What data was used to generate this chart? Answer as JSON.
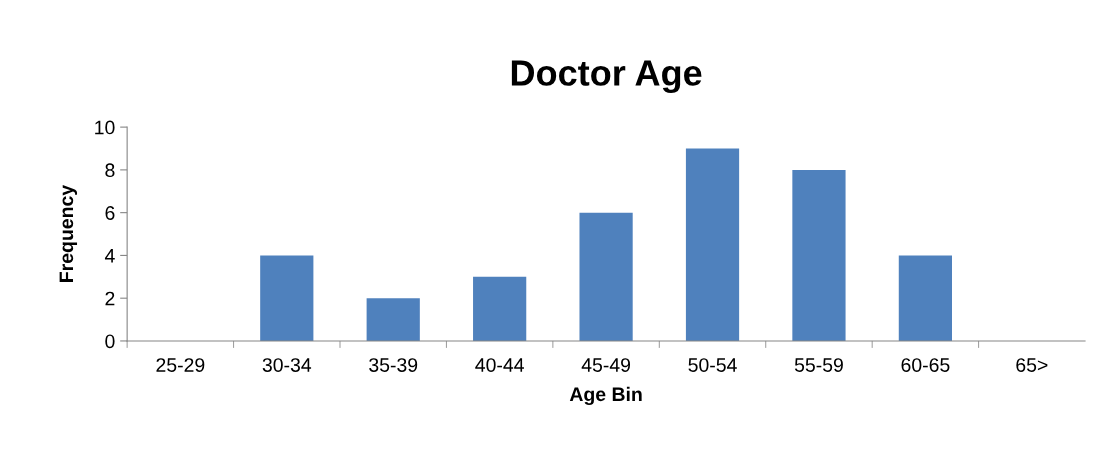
{
  "chart_data": {
    "type": "bar",
    "title": "Doctor Age",
    "xlabel": "Age Bin",
    "ylabel": "Frequency",
    "categories": [
      "25-29",
      "30-34",
      "35-39",
      "40-44",
      "45-49",
      "50-54",
      "55-59",
      "60-65",
      "65>"
    ],
    "values": [
      0,
      4,
      2,
      3,
      6,
      9,
      8,
      4,
      0
    ],
    "color": "#4f81bd",
    "ylim": [
      0,
      10
    ],
    "yticks": [
      0,
      2,
      4,
      6,
      8,
      10
    ],
    "grid": false,
    "legend": false
  }
}
